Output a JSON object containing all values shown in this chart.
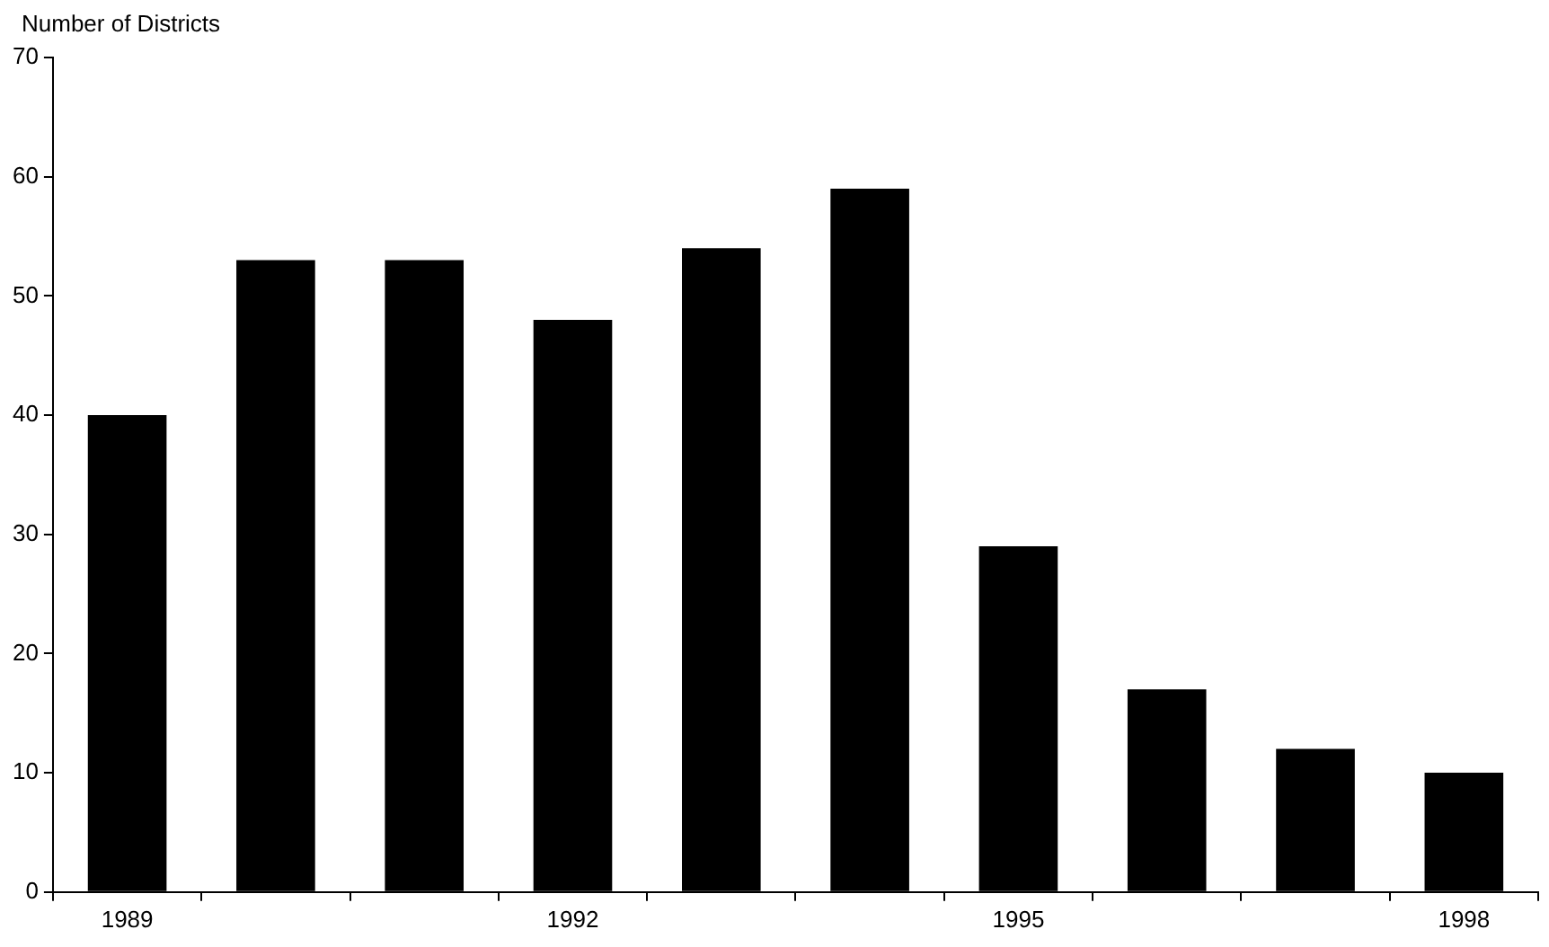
{
  "chart_data": {
    "type": "bar",
    "ylabel": "Number of Districts",
    "categories": [
      "1989",
      null,
      null,
      "1992",
      null,
      null,
      "1995",
      null,
      null,
      "1998"
    ],
    "values": [
      40,
      53,
      53,
      48,
      54,
      59,
      29,
      17,
      12,
      10
    ],
    "color": "#000000",
    "ylim": [
      0,
      70
    ],
    "yticks": [
      0,
      10,
      20,
      30,
      40,
      50,
      60,
      70
    ],
    "grid": false,
    "legend": false
  }
}
